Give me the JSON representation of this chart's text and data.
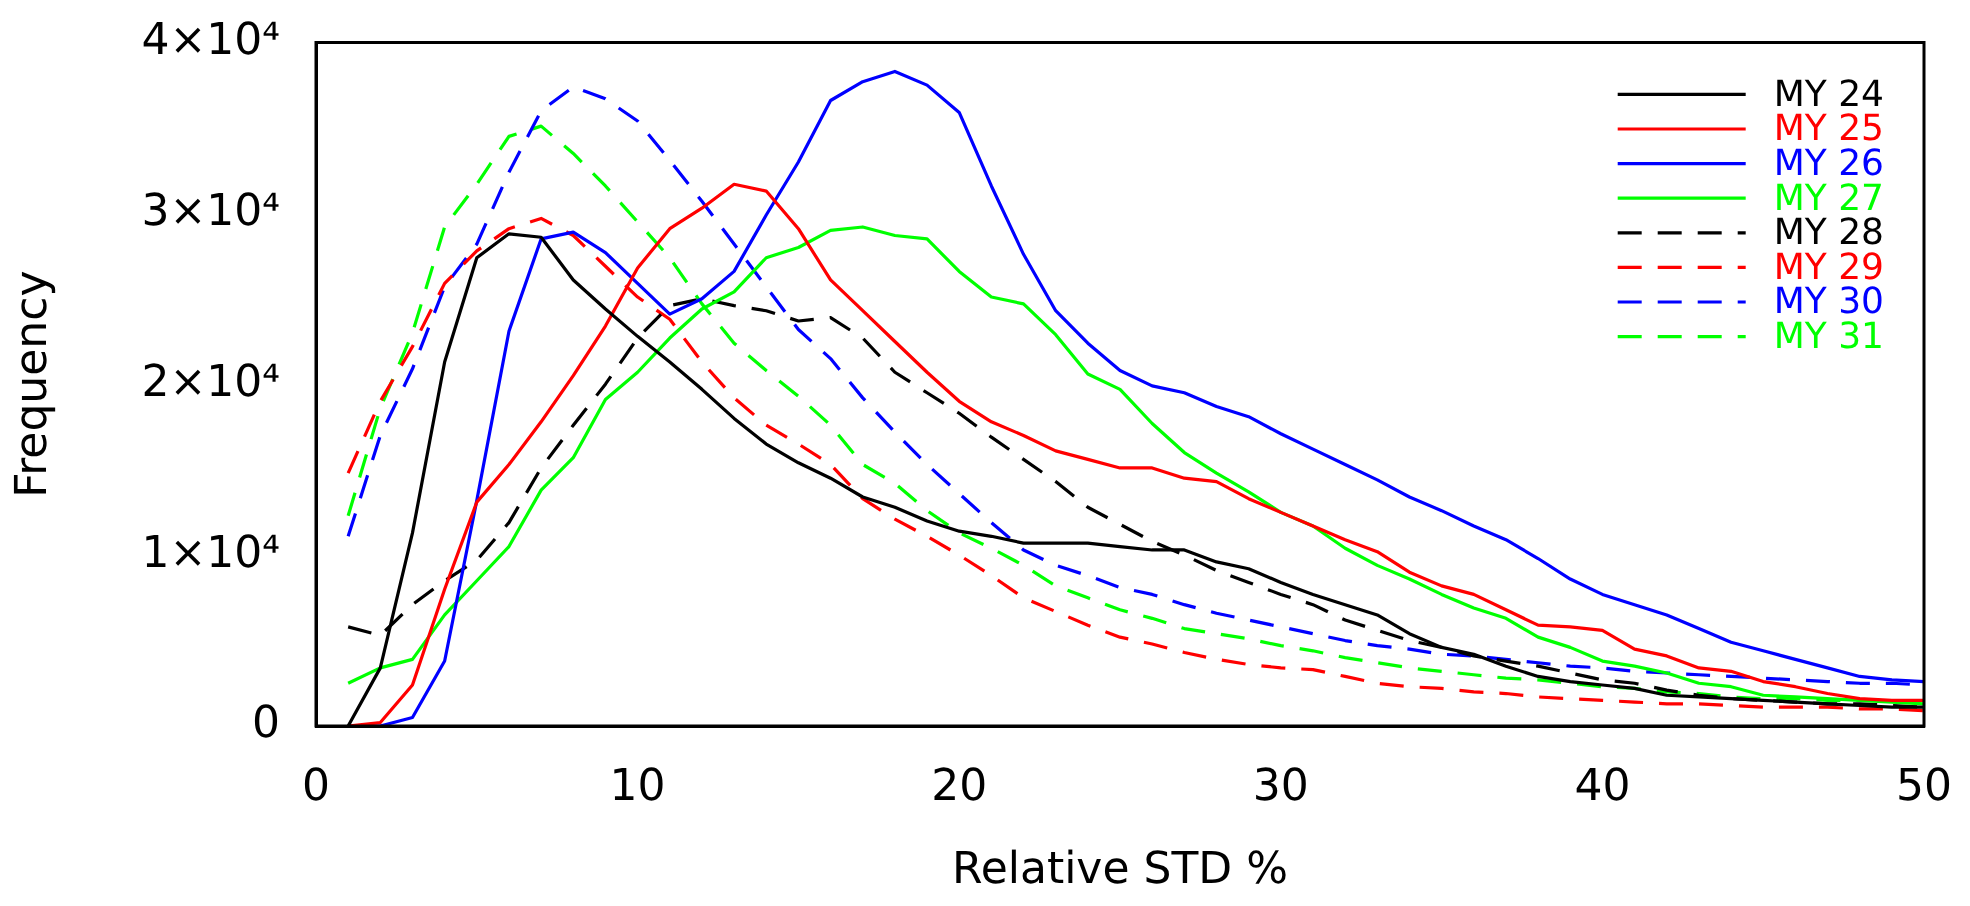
{
  "chart_data": {
    "type": "line",
    "xlabel": "Relative STD %",
    "ylabel": "Frequency",
    "x": [
      1,
      2,
      3,
      4,
      5,
      6,
      7,
      8,
      9,
      10,
      11,
      12,
      13,
      14,
      15,
      16,
      17,
      18,
      19,
      20,
      21,
      22,
      23,
      24,
      25,
      26,
      27,
      28,
      29,
      30,
      31,
      32,
      33,
      34,
      35,
      36,
      37,
      38,
      39,
      40,
      41,
      42,
      43,
      44,
      45,
      46,
      47,
      48,
      49,
      50
    ],
    "xlim": [
      0,
      50
    ],
    "xticks": [
      0,
      10,
      20,
      30,
      40,
      50
    ],
    "ylim": [
      0,
      40000
    ],
    "yticks": [
      0,
      {
        "value": 10000,
        "label": "1×10⁴"
      },
      {
        "value": 20000,
        "label": "2×10⁴"
      },
      {
        "value": 30000,
        "label": "3×10⁴"
      },
      {
        "value": 40000,
        "label": "4×10⁴"
      }
    ],
    "grid": false,
    "legend": "top right",
    "series": [
      {
        "name": "MY 24",
        "color": "#000000",
        "line_style": "solid",
        "values": [
          0,
          3400,
          11300,
          21300,
          27400,
          28800,
          28600,
          26100,
          24400,
          22800,
          21300,
          19700,
          18000,
          16500,
          15400,
          14500,
          13400,
          12800,
          12000,
          11400,
          11100,
          10700,
          10700,
          10700,
          10500,
          10300,
          10300,
          9600,
          9200,
          8400,
          7700,
          7100,
          6500,
          5400,
          4600,
          4200,
          3500,
          2900,
          2600,
          2400,
          2200,
          1800,
          1700,
          1600,
          1500,
          1400,
          1300,
          1200,
          1100,
          1100
        ]
      },
      {
        "name": "MY 25",
        "color": "#ff0000",
        "line_style": "solid",
        "values": [
          0,
          200,
          2400,
          8000,
          13100,
          15300,
          17800,
          20500,
          23400,
          26800,
          29100,
          30300,
          31700,
          31300,
          29100,
          26100,
          24300,
          22500,
          20700,
          19000,
          17800,
          17000,
          16100,
          15600,
          15100,
          15100,
          14500,
          14300,
          13300,
          12500,
          11700,
          10900,
          10200,
          9000,
          8200,
          7700,
          6800,
          5900,
          5800,
          5600,
          4500,
          4100,
          3400,
          3200,
          2600,
          2300,
          1900,
          1600,
          1500,
          1500
        ]
      },
      {
        "name": "MY 26",
        "color": "#0000ff",
        "line_style": "solid",
        "values": [
          0,
          0,
          500,
          3800,
          13200,
          23100,
          28500,
          28900,
          27700,
          25900,
          24100,
          25000,
          26600,
          29900,
          33000,
          36600,
          37700,
          38300,
          37500,
          35900,
          31600,
          27600,
          24300,
          22400,
          20800,
          19900,
          19500,
          18700,
          18100,
          17100,
          16200,
          15300,
          14400,
          13400,
          12600,
          11700,
          10900,
          9800,
          8600,
          7700,
          7100,
          6500,
          5700,
          4900,
          4400,
          3900,
          3400,
          2900,
          2700,
          2600
        ]
      },
      {
        "name": "MY 27",
        "color": "#00ff00",
        "line_style": "solid",
        "values": [
          2500,
          3400,
          3900,
          6500,
          8500,
          10500,
          13800,
          15700,
          19100,
          20700,
          22700,
          24400,
          25400,
          27400,
          28000,
          29000,
          29200,
          28700,
          28500,
          26600,
          25100,
          24700,
          22900,
          20600,
          19700,
          17700,
          16000,
          14800,
          13700,
          12500,
          11700,
          10400,
          9400,
          8600,
          7700,
          6900,
          6300,
          5200,
          4600,
          3800,
          3500,
          3100,
          2500,
          2300,
          1800,
          1700,
          1600,
          1500,
          1400,
          1300
        ]
      },
      {
        "name": "MY 28",
        "color": "#000000",
        "line_style": "dashed",
        "values": [
          5800,
          5300,
          7100,
          8500,
          9700,
          11900,
          15100,
          17600,
          20000,
          22700,
          24600,
          25000,
          24600,
          24300,
          23700,
          23900,
          22700,
          20700,
          19500,
          18300,
          16900,
          15600,
          14300,
          12800,
          11800,
          10800,
          10000,
          9100,
          8400,
          7700,
          7100,
          6200,
          5600,
          5000,
          4600,
          4100,
          3800,
          3500,
          3100,
          2700,
          2500,
          2100,
          1800,
          1600,
          1500,
          1400,
          1300,
          1300,
          1200,
          1100
        ]
      },
      {
        "name": "MY 29",
        "color": "#ff0000",
        "line_style": "dashed",
        "values": [
          14800,
          19000,
          22200,
          25900,
          27800,
          29100,
          29700,
          28700,
          26900,
          25100,
          23800,
          21300,
          19200,
          17600,
          16500,
          15300,
          13300,
          12100,
          11100,
          10000,
          8800,
          7500,
          6700,
          5900,
          5200,
          4800,
          4300,
          3900,
          3600,
          3400,
          3300,
          2900,
          2500,
          2300,
          2200,
          2000,
          1900,
          1700,
          1600,
          1500,
          1400,
          1300,
          1300,
          1200,
          1100,
          1100,
          1100,
          1000,
          1000,
          900
        ]
      },
      {
        "name": "MY 30",
        "color": "#0000ff",
        "line_style": "dashed",
        "values": [
          11100,
          17000,
          20900,
          25700,
          28200,
          32400,
          36000,
          37400,
          36700,
          35400,
          33100,
          30700,
          28200,
          25700,
          23200,
          21500,
          19200,
          17200,
          15300,
          13600,
          11900,
          10300,
          9400,
          8800,
          8100,
          7700,
          7100,
          6600,
          6200,
          5800,
          5400,
          5000,
          4700,
          4500,
          4200,
          4100,
          3900,
          3700,
          3500,
          3400,
          3200,
          3100,
          3000,
          2900,
          2800,
          2700,
          2600,
          2500,
          2500,
          2400
        ]
      },
      {
        "name": "MY 31",
        "color": "#00ff00",
        "line_style": "dashed",
        "values": [
          12300,
          18600,
          23000,
          29200,
          31700,
          34500,
          35100,
          33500,
          31600,
          29500,
          27400,
          24700,
          22400,
          20800,
          19300,
          17600,
          15300,
          14200,
          12600,
          11300,
          10400,
          9400,
          8200,
          7500,
          6800,
          6300,
          5700,
          5400,
          5100,
          4700,
          4400,
          4000,
          3700,
          3400,
          3200,
          3000,
          2800,
          2700,
          2500,
          2300,
          2200,
          2000,
          1900,
          1700,
          1600,
          1600,
          1500,
          1500,
          1500,
          1400
        ]
      }
    ]
  }
}
